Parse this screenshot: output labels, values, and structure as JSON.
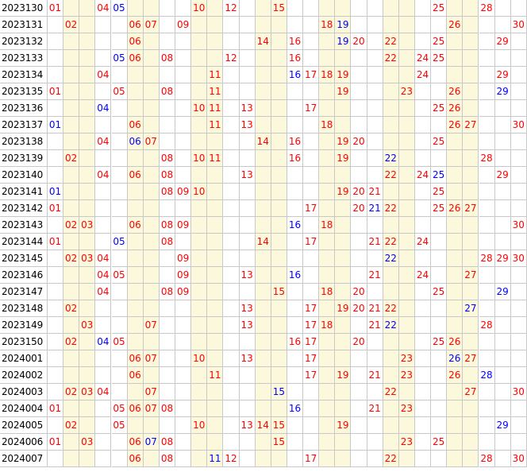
{
  "colors": {
    "red": "#ff0000",
    "blue": "#0000ff",
    "shade": "#fcf8dc",
    "grid": "#c8c8c8"
  },
  "total_numbers": 30,
  "rows": [
    {
      "issue": "2023130",
      "nums": [
        "01",
        "04",
        "05",
        "10",
        "12",
        "15",
        "25",
        "28"
      ],
      "colors": [
        "r",
        "r",
        "b",
        "r",
        "r",
        "r",
        "r",
        "r"
      ]
    },
    {
      "issue": "2023131",
      "nums": [
        "02",
        "06",
        "07",
        "09",
        "18",
        "19",
        "26",
        "30"
      ],
      "colors": [
        "r",
        "r",
        "r",
        "r",
        "r",
        "b",
        "r",
        "r"
      ]
    },
    {
      "issue": "2023132",
      "nums": [
        "06",
        "14",
        "16",
        "19",
        "20",
        "22",
        "25",
        "29"
      ],
      "colors": [
        "r",
        "r",
        "r",
        "b",
        "r",
        "r",
        "r",
        "r"
      ]
    },
    {
      "issue": "2023133",
      "nums": [
        "05",
        "06",
        "08",
        "12",
        "16",
        "22",
        "24",
        "25"
      ],
      "colors": [
        "b",
        "r",
        "r",
        "r",
        "r",
        "r",
        "r",
        "r"
      ]
    },
    {
      "issue": "2023134",
      "nums": [
        "04",
        "11",
        "16",
        "17",
        "18",
        "19",
        "24",
        "29"
      ],
      "colors": [
        "r",
        "r",
        "b",
        "r",
        "r",
        "r",
        "r",
        "r"
      ]
    },
    {
      "issue": "2023135",
      "nums": [
        "01",
        "05",
        "08",
        "11",
        "19",
        "23",
        "26",
        "29"
      ],
      "colors": [
        "r",
        "r",
        "r",
        "r",
        "r",
        "r",
        "r",
        "b"
      ]
    },
    {
      "issue": "2023136",
      "nums": [
        "04",
        "10",
        "11",
        "13",
        "17",
        "25",
        "26"
      ],
      "colors": [
        "b",
        "r",
        "r",
        "r",
        "r",
        "r",
        "r"
      ]
    },
    {
      "issue": "2023137",
      "nums": [
        "01",
        "06",
        "11",
        "13",
        "18",
        "26",
        "27",
        "30"
      ],
      "colors": [
        "b",
        "r",
        "r",
        "r",
        "r",
        "r",
        "r",
        "r"
      ]
    },
    {
      "issue": "2023138",
      "nums": [
        "04",
        "06",
        "07",
        "14",
        "16",
        "19",
        "20",
        "25"
      ],
      "colors": [
        "r",
        "b",
        "r",
        "r",
        "r",
        "r",
        "r",
        "r"
      ]
    },
    {
      "issue": "2023139",
      "nums": [
        "02",
        "08",
        "10",
        "11",
        "16",
        "19",
        "22",
        "28"
      ],
      "colors": [
        "r",
        "r",
        "r",
        "r",
        "r",
        "r",
        "b",
        "r"
      ]
    },
    {
      "issue": "2023140",
      "nums": [
        "04",
        "06",
        "08",
        "13",
        "22",
        "24",
        "25",
        "29"
      ],
      "colors": [
        "r",
        "r",
        "r",
        "r",
        "r",
        "r",
        "b",
        "r"
      ]
    },
    {
      "issue": "2023141",
      "nums": [
        "01",
        "08",
        "09",
        "10",
        "19",
        "20",
        "21",
        "25"
      ],
      "colors": [
        "b",
        "r",
        "r",
        "r",
        "r",
        "r",
        "r",
        "r"
      ]
    },
    {
      "issue": "2023142",
      "nums": [
        "01",
        "17",
        "20",
        "21",
        "22",
        "25",
        "26",
        "27"
      ],
      "colors": [
        "r",
        "r",
        "r",
        "b",
        "r",
        "r",
        "r",
        "r"
      ]
    },
    {
      "issue": "2023143",
      "nums": [
        "02",
        "03",
        "06",
        "08",
        "09",
        "16",
        "18",
        "30"
      ],
      "colors": [
        "r",
        "r",
        "r",
        "r",
        "r",
        "b",
        "r",
        "r"
      ]
    },
    {
      "issue": "2023144",
      "nums": [
        "01",
        "05",
        "08",
        "14",
        "17",
        "21",
        "22",
        "24"
      ],
      "colors": [
        "r",
        "b",
        "r",
        "r",
        "r",
        "r",
        "r",
        "r"
      ]
    },
    {
      "issue": "2023145",
      "nums": [
        "02",
        "03",
        "04",
        "09",
        "22",
        "28",
        "29",
        "30"
      ],
      "colors": [
        "r",
        "r",
        "r",
        "r",
        "b",
        "r",
        "r",
        "r"
      ]
    },
    {
      "issue": "2023146",
      "nums": [
        "04",
        "05",
        "09",
        "13",
        "16",
        "21",
        "24",
        "27"
      ],
      "colors": [
        "r",
        "r",
        "r",
        "r",
        "b",
        "r",
        "r",
        "r"
      ]
    },
    {
      "issue": "2023147",
      "nums": [
        "04",
        "08",
        "09",
        "15",
        "18",
        "20",
        "25",
        "29"
      ],
      "colors": [
        "r",
        "r",
        "r",
        "r",
        "r",
        "r",
        "r",
        "b"
      ]
    },
    {
      "issue": "2023148",
      "nums": [
        "02",
        "13",
        "17",
        "19",
        "20",
        "21",
        "22",
        "27"
      ],
      "colors": [
        "r",
        "r",
        "r",
        "r",
        "r",
        "r",
        "r",
        "b"
      ]
    },
    {
      "issue": "2023149",
      "nums": [
        "03",
        "07",
        "13",
        "17",
        "18",
        "21",
        "22",
        "28"
      ],
      "colors": [
        "r",
        "r",
        "r",
        "r",
        "r",
        "r",
        "b",
        "r"
      ]
    },
    {
      "issue": "2023150",
      "nums": [
        "02",
        "04",
        "05",
        "16",
        "17",
        "20",
        "25",
        "26"
      ],
      "colors": [
        "r",
        "b",
        "r",
        "r",
        "r",
        "r",
        "r",
        "r"
      ]
    },
    {
      "issue": "2024001",
      "nums": [
        "06",
        "07",
        "10",
        "13",
        "17",
        "23",
        "26",
        "27"
      ],
      "colors": [
        "r",
        "r",
        "r",
        "r",
        "r",
        "r",
        "b",
        "r"
      ]
    },
    {
      "issue": "2024002",
      "nums": [
        "06",
        "11",
        "17",
        "19",
        "21",
        "23",
        "26",
        "28"
      ],
      "colors": [
        "r",
        "r",
        "r",
        "r",
        "r",
        "r",
        "r",
        "b"
      ]
    },
    {
      "issue": "2024003",
      "nums": [
        "02",
        "03",
        "04",
        "07",
        "15",
        "22",
        "27",
        "30"
      ],
      "colors": [
        "r",
        "r",
        "r",
        "r",
        "b",
        "r",
        "r",
        "r"
      ]
    },
    {
      "issue": "2024004",
      "nums": [
        "01",
        "05",
        "06",
        "07",
        "08",
        "16",
        "21",
        "23"
      ],
      "colors": [
        "r",
        "r",
        "r",
        "r",
        "r",
        "b",
        "r",
        "r"
      ]
    },
    {
      "issue": "2024005",
      "nums": [
        "02",
        "05",
        "10",
        "13",
        "14",
        "15",
        "19",
        "29"
      ],
      "colors": [
        "r",
        "r",
        "r",
        "r",
        "r",
        "r",
        "r",
        "b"
      ]
    },
    {
      "issue": "2024006",
      "nums": [
        "01",
        "03",
        "06",
        "07",
        "08",
        "15",
        "23",
        "25"
      ],
      "colors": [
        "r",
        "r",
        "r",
        "b",
        "r",
        "r",
        "r",
        "r"
      ]
    },
    {
      "issue": "2024007",
      "nums": [
        "06",
        "08",
        "11",
        "12",
        "17",
        "22",
        "28",
        "30"
      ],
      "colors": [
        "r",
        "r",
        "b",
        "r",
        "r",
        "r",
        "r",
        "r"
      ]
    }
  ]
}
